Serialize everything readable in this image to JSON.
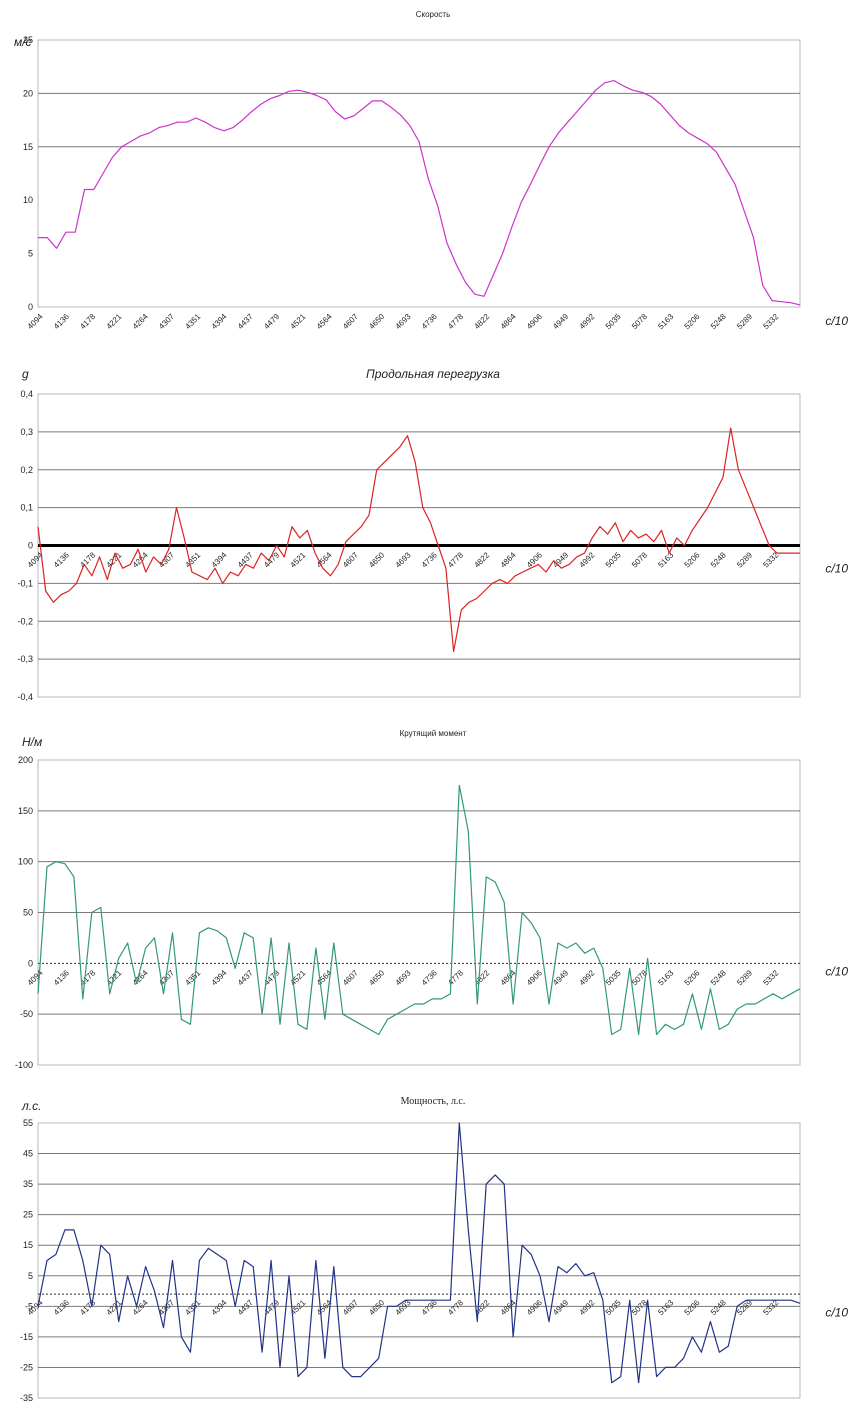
{
  "chart_data": [
    {
      "type": "line",
      "title": "Скорость",
      "title_style": "small",
      "ylabel": "м/с",
      "xlabel": "с/10",
      "ylim": [
        0,
        25
      ],
      "yticks": [
        0,
        5,
        10,
        15,
        20,
        25
      ],
      "gridlines": [
        15,
        20
      ],
      "zero_line": "none",
      "color": "#cc33cc",
      "x_tick_labels": [
        "4094",
        "4136",
        "4178",
        "4221",
        "4264",
        "4307",
        "4351",
        "4394",
        "4437",
        "4479",
        "4521",
        "4564",
        "4607",
        "4650",
        "4693",
        "4736",
        "4778",
        "4822",
        "4864",
        "4906",
        "4949",
        "4992",
        "5035",
        "5078",
        "5163",
        "5206",
        "5248",
        "5289",
        "5332"
      ],
      "series": [
        {
          "values": [
            6.5,
            6.5,
            5.5,
            7,
            7,
            11,
            11,
            12.5,
            14,
            15,
            15.5,
            16,
            16.3,
            16.8,
            17,
            17.3,
            17.3,
            17.7,
            17.3,
            16.8,
            16.5,
            16.8,
            17.5,
            18.3,
            19,
            19.5,
            19.8,
            20.2,
            20.3,
            20.1,
            19.8,
            19.4,
            18.3,
            17.6,
            17.9,
            18.6,
            19.3,
            19.3,
            18.7,
            18,
            17,
            15.5,
            12,
            9.5,
            6,
            4,
            2.3,
            1.2,
            1,
            3,
            5,
            7.5,
            9.8,
            11.5,
            13.3,
            15,
            16.3,
            17.3,
            18.3,
            19.3,
            20.3,
            21,
            21.2,
            20.7,
            20.3,
            20.1,
            19.7,
            19,
            18,
            17,
            16.3,
            15.8,
            15.3,
            14.5,
            13,
            11.5,
            9,
            6.5,
            2,
            0.6,
            0.5,
            0.4,
            0.2
          ]
        }
      ]
    },
    {
      "type": "line",
      "title": "Продольная перегрузка",
      "title_style": "italic",
      "ylabel": "g",
      "xlabel": "с/10",
      "ylim": [
        -0.4,
        0.4
      ],
      "yticks": [
        -0.4,
        -0.3,
        -0.2,
        -0.1,
        0,
        0.1,
        0.2,
        0.3,
        0.4
      ],
      "ytick_labels": [
        "-0,4",
        "-0,3",
        "-0,2",
        "-0,1",
        "0",
        "0,1",
        "0,2",
        "0,3",
        "0,4"
      ],
      "gridlines": [
        -0.3,
        -0.2,
        -0.1,
        0.1,
        0.2,
        0.3
      ],
      "zero_line": "bold",
      "color": "#dd2222",
      "x_tick_labels": [
        "4094",
        "4136",
        "4178",
        "4221",
        "4264",
        "4307",
        "4351",
        "4394",
        "4437",
        "4479",
        "4521",
        "4564",
        "4607",
        "4650",
        "4693",
        "4736",
        "4778",
        "4822",
        "4864",
        "4906",
        "4949",
        "4992",
        "5035",
        "5078",
        "5163",
        "5206",
        "5248",
        "5289",
        "5332"
      ],
      "series": [
        {
          "values": [
            0.05,
            -0.12,
            -0.15,
            -0.13,
            -0.12,
            -0.1,
            -0.05,
            -0.08,
            -0.03,
            -0.09,
            -0.02,
            -0.06,
            -0.05,
            -0.01,
            -0.07,
            -0.03,
            -0.05,
            -0.01,
            0.1,
            0.02,
            -0.07,
            -0.08,
            -0.09,
            -0.06,
            -0.1,
            -0.07,
            -0.08,
            -0.05,
            -0.06,
            -0.02,
            -0.04,
            0,
            -0.03,
            0.05,
            0.02,
            0.04,
            -0.02,
            -0.06,
            -0.08,
            -0.05,
            0.01,
            0.03,
            0.05,
            0.08,
            0.2,
            0.22,
            0.24,
            0.26,
            0.29,
            0.22,
            0.1,
            0.06,
            0,
            -0.06,
            -0.28,
            -0.17,
            -0.15,
            -0.14,
            -0.12,
            -0.1,
            -0.09,
            -0.1,
            -0.08,
            -0.07,
            -0.06,
            -0.05,
            -0.07,
            -0.04,
            -0.06,
            -0.05,
            -0.03,
            -0.02,
            0.02,
            0.05,
            0.03,
            0.06,
            0.01,
            0.04,
            0.02,
            0.03,
            0.01,
            0.04,
            -0.02,
            0.02,
            0,
            0.04,
            0.07,
            0.1,
            0.14,
            0.18,
            0.31,
            0.2,
            0.15,
            0.1,
            0.05,
            0,
            -0.02,
            -0.02,
            -0.02,
            -0.02
          ]
        }
      ]
    },
    {
      "type": "line",
      "title": "Крутящий момент",
      "title_style": "small",
      "ylabel": "Н/м",
      "xlabel": "с/10",
      "ylim": [
        -100,
        200
      ],
      "yticks": [
        -100,
        -50,
        0,
        50,
        100,
        150,
        200
      ],
      "gridlines": [
        -50,
        50,
        100,
        150
      ],
      "zero_line": "dashed",
      "color": "#339977",
      "x_tick_labels": [
        "4094",
        "4136",
        "4178",
        "4221",
        "4264",
        "4307",
        "4351",
        "4394",
        "4437",
        "4479",
        "4521",
        "4564",
        "4607",
        "4650",
        "4693",
        "4736",
        "4778",
        "4822",
        "4864",
        "4906",
        "4949",
        "4992",
        "5035",
        "5078",
        "5163",
        "5206",
        "5248",
        "5289",
        "5332"
      ],
      "series": [
        {
          "values": [
            -30,
            95,
            100,
            98,
            85,
            -35,
            50,
            55,
            -30,
            5,
            20,
            -20,
            15,
            25,
            -30,
            30,
            -55,
            -60,
            30,
            35,
            32,
            25,
            -5,
            30,
            25,
            -50,
            25,
            -60,
            20,
            -60,
            -65,
            15,
            -55,
            20,
            -50,
            -55,
            -60,
            -65,
            -70,
            -55,
            -50,
            -45,
            -40,
            -40,
            -35,
            -35,
            -30,
            175,
            130,
            -40,
            85,
            80,
            60,
            -40,
            50,
            40,
            25,
            -40,
            20,
            15,
            20,
            10,
            15,
            -5,
            -70,
            -65,
            -5,
            -70,
            5,
            -70,
            -60,
            -65,
            -60,
            -30,
            -65,
            -25,
            -65,
            -60,
            -45,
            -40,
            -40,
            -35,
            -30,
            -35,
            -30,
            -25
          ]
        }
      ]
    },
    {
      "type": "line",
      "title": "Мощность, л.с.",
      "title_style": "serif",
      "ylabel": "л.с.",
      "xlabel": "с/10",
      "ylim": [
        -35,
        55
      ],
      "yticks": [
        -35,
        -25,
        -15,
        -5,
        5,
        15,
        25,
        35,
        45,
        55
      ],
      "gridlines": [
        -25,
        -15,
        -5,
        15,
        25,
        35,
        45
      ],
      "zero_line": "none",
      "ref_line": 5,
      "ref_line_dashed": -1,
      "color": "#223388",
      "x_tick_labels": [
        "4094",
        "4136",
        "4178",
        "4221",
        "4264",
        "4307",
        "4351",
        "4394",
        "4437",
        "4479",
        "4521",
        "4564",
        "4607",
        "4650",
        "4693",
        "4736",
        "4778",
        "4822",
        "4864",
        "4906",
        "4949",
        "4992",
        "5035",
        "5078",
        "5163",
        "5206",
        "5248",
        "5289",
        "5332"
      ],
      "series": [
        {
          "values": [
            -5,
            10,
            12,
            20,
            20,
            10,
            -5,
            15,
            12,
            -10,
            5,
            -5,
            8,
            0,
            -12,
            10,
            -15,
            -20,
            10,
            14,
            12,
            10,
            -5,
            10,
            8,
            -20,
            10,
            -25,
            5,
            -28,
            -25,
            10,
            -22,
            8,
            -25,
            -28,
            -28,
            -25,
            -22,
            -5,
            -5,
            -3,
            -3,
            -3,
            -3,
            -3,
            -3,
            55,
            20,
            -10,
            35,
            38,
            35,
            -15,
            15,
            12,
            5,
            -10,
            8,
            6,
            9,
            5,
            6,
            -3,
            -30,
            -28,
            -3,
            -30,
            -3,
            -28,
            -25,
            -25,
            -22,
            -15,
            -20,
            -10,
            -20,
            -18,
            -5,
            -3,
            -3,
            -3,
            -3,
            -3,
            -3,
            -4
          ]
        }
      ]
    }
  ]
}
